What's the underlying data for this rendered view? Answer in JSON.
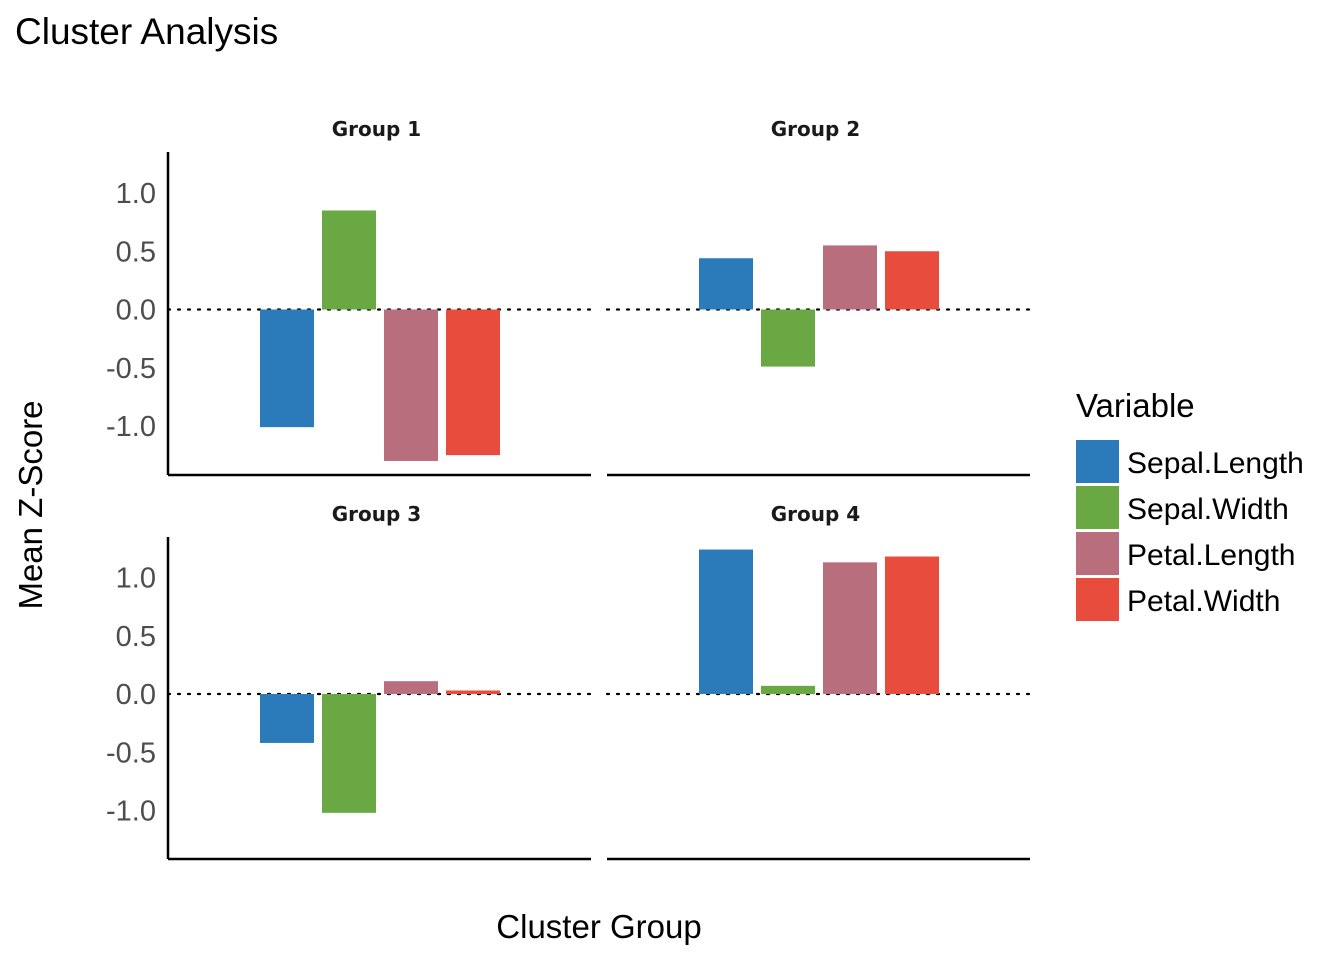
{
  "chart_data": {
    "type": "bar",
    "title": "Cluster Analysis",
    "xlabel": "Cluster Group",
    "ylabel": "Mean Z-Score",
    "ylim": [
      -1.42,
      1.35
    ],
    "yticks": [
      1.0,
      0.5,
      0.0,
      -0.5,
      -1.0
    ],
    "ytick_labels": [
      "1.0",
      "0.5",
      "0.0",
      "-0.5",
      "-1.0"
    ],
    "reference_line": 0,
    "grid": false,
    "legend": {
      "title": "Variable",
      "placement": "right"
    },
    "series": [
      {
        "name": "Sepal.Length",
        "color": "#2b7bba"
      },
      {
        "name": "Sepal.Width",
        "color": "#6aa843"
      },
      {
        "name": "Petal.Length",
        "color": "#b86e7c"
      },
      {
        "name": "Petal.Width",
        "color": "#e74c3c"
      }
    ],
    "facets": [
      {
        "label": "Group 1",
        "values": [
          -1.01,
          0.85,
          -1.3,
          -1.25
        ]
      },
      {
        "label": "Group 2",
        "values": [
          0.44,
          -0.49,
          0.55,
          0.5
        ]
      },
      {
        "label": "Group 3",
        "values": [
          -0.42,
          -1.02,
          0.11,
          0.03
        ]
      },
      {
        "label": "Group 4",
        "values": [
          1.24,
          0.07,
          1.13,
          1.18
        ]
      }
    ]
  }
}
